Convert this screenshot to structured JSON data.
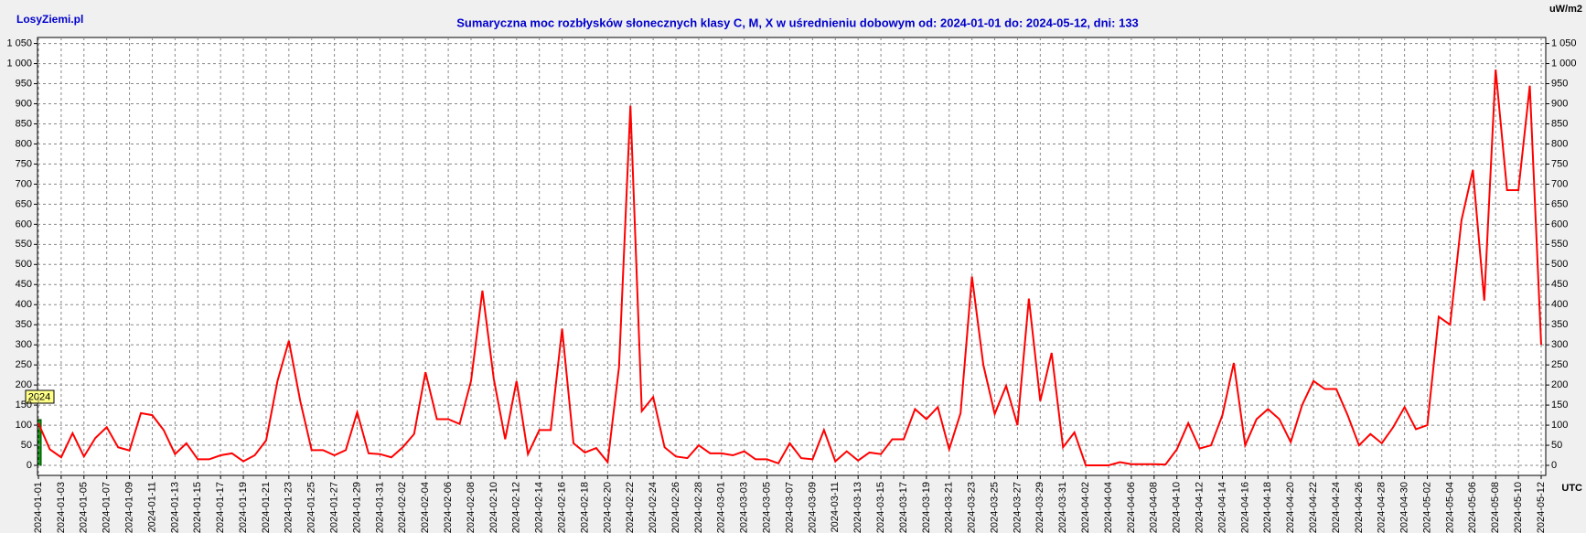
{
  "chart_data": {
    "type": "line",
    "site": "LosyZiemi.pl",
    "title": "Sumaryczna moc rozbłysków słonecznych klasy C, M, X w uśrednieniu dobowym od: 2024-01-01 do: 2024-05-12, dni: 133",
    "y_unit": "uW/m2",
    "x_unit": "UTC",
    "year_label": "2024",
    "categories": [
      "2024-01-01",
      null,
      "2024-01-03",
      null,
      "2024-01-05",
      null,
      "2024-01-07",
      null,
      "2024-01-09",
      null,
      "2024-01-11",
      null,
      "2024-01-13",
      null,
      "2024-01-15",
      null,
      "2024-01-17",
      null,
      "2024-01-19",
      null,
      "2024-01-21",
      null,
      "2024-01-23",
      null,
      "2024-01-25",
      null,
      "2024-01-27",
      null,
      "2024-01-29",
      null,
      "2024-01-31",
      null,
      "2024-02-02",
      null,
      "2024-02-04",
      null,
      "2024-02-06",
      null,
      "2024-02-08",
      null,
      "2024-02-10",
      null,
      "2024-02-12",
      null,
      "2024-02-14",
      null,
      "2024-02-16",
      null,
      "2024-02-18",
      null,
      "2024-02-20",
      null,
      "2024-02-22",
      null,
      "2024-02-24",
      null,
      "2024-02-26",
      null,
      "2024-02-28",
      null,
      "2024-03-01",
      null,
      "2024-03-03",
      null,
      "2024-03-05",
      null,
      "2024-03-07",
      null,
      "2024-03-09",
      null,
      "2024-03-11",
      null,
      "2024-03-13",
      null,
      "2024-03-15",
      null,
      "2024-03-17",
      null,
      "2024-03-19",
      null,
      "2024-03-21",
      null,
      "2024-03-23",
      null,
      "2024-03-25",
      null,
      "2024-03-27",
      null,
      "2024-03-29",
      null,
      "2024-03-31",
      null,
      "2024-04-02",
      null,
      "2024-04-04",
      null,
      "2024-04-06",
      null,
      "2024-04-08",
      null,
      "2024-04-10",
      null,
      "2024-04-12",
      null,
      "2024-04-14",
      null,
      "2024-04-16",
      null,
      "2024-04-18",
      null,
      "2024-04-20",
      null,
      "2024-04-22",
      null,
      "2024-04-24",
      null,
      "2024-04-26",
      null,
      "2024-04-28",
      null,
      "2024-04-30",
      null,
      "2024-05-02",
      null,
      "2024-05-04",
      null,
      "2024-05-06",
      null,
      "2024-05-08",
      null,
      "2024-05-10",
      null,
      "2024-05-12"
    ],
    "series": [
      {
        "color": "#ff0000",
        "values": [
          105,
          40,
          20,
          80,
          22,
          68,
          95,
          45,
          37,
          130,
          125,
          88,
          28,
          55,
          15,
          15,
          25,
          30,
          10,
          25,
          62,
          210,
          310,
          160,
          38,
          38,
          25,
          38,
          132,
          30,
          28,
          20,
          45,
          78,
          232,
          115,
          115,
          103,
          210,
          435,
          215,
          65,
          210,
          28,
          88,
          88,
          340,
          55,
          32,
          43,
          8,
          245,
          895,
          135,
          170,
          45,
          22,
          18,
          50,
          30,
          30,
          25,
          35,
          15,
          15,
          5,
          55,
          18,
          15,
          88,
          10,
          35,
          12,
          32,
          28,
          65,
          65,
          140,
          115,
          145,
          40,
          130,
          470,
          250,
          128,
          198,
          100,
          415,
          160,
          280,
          45,
          82,
          0,
          0,
          0,
          8,
          3,
          3,
          3,
          2,
          40,
          105,
          42,
          50,
          125,
          255,
          50,
          115,
          140,
          115,
          58,
          150,
          210,
          190,
          190,
          125,
          50,
          78,
          55,
          95,
          145,
          90,
          100,
          370,
          350,
          610,
          735,
          410,
          985,
          685,
          685,
          945,
          300
        ]
      }
    ],
    "ylim": [
      -25,
      1065
    ],
    "yticks": [
      0,
      50,
      100,
      150,
      200,
      250,
      300,
      350,
      400,
      450,
      500,
      550,
      600,
      650,
      700,
      750,
      800,
      850,
      900,
      950,
      {
        "value": 1000,
        "label": "1 000"
      },
      {
        "value": 1050,
        "label": "1 050"
      }
    ],
    "grid": true
  }
}
